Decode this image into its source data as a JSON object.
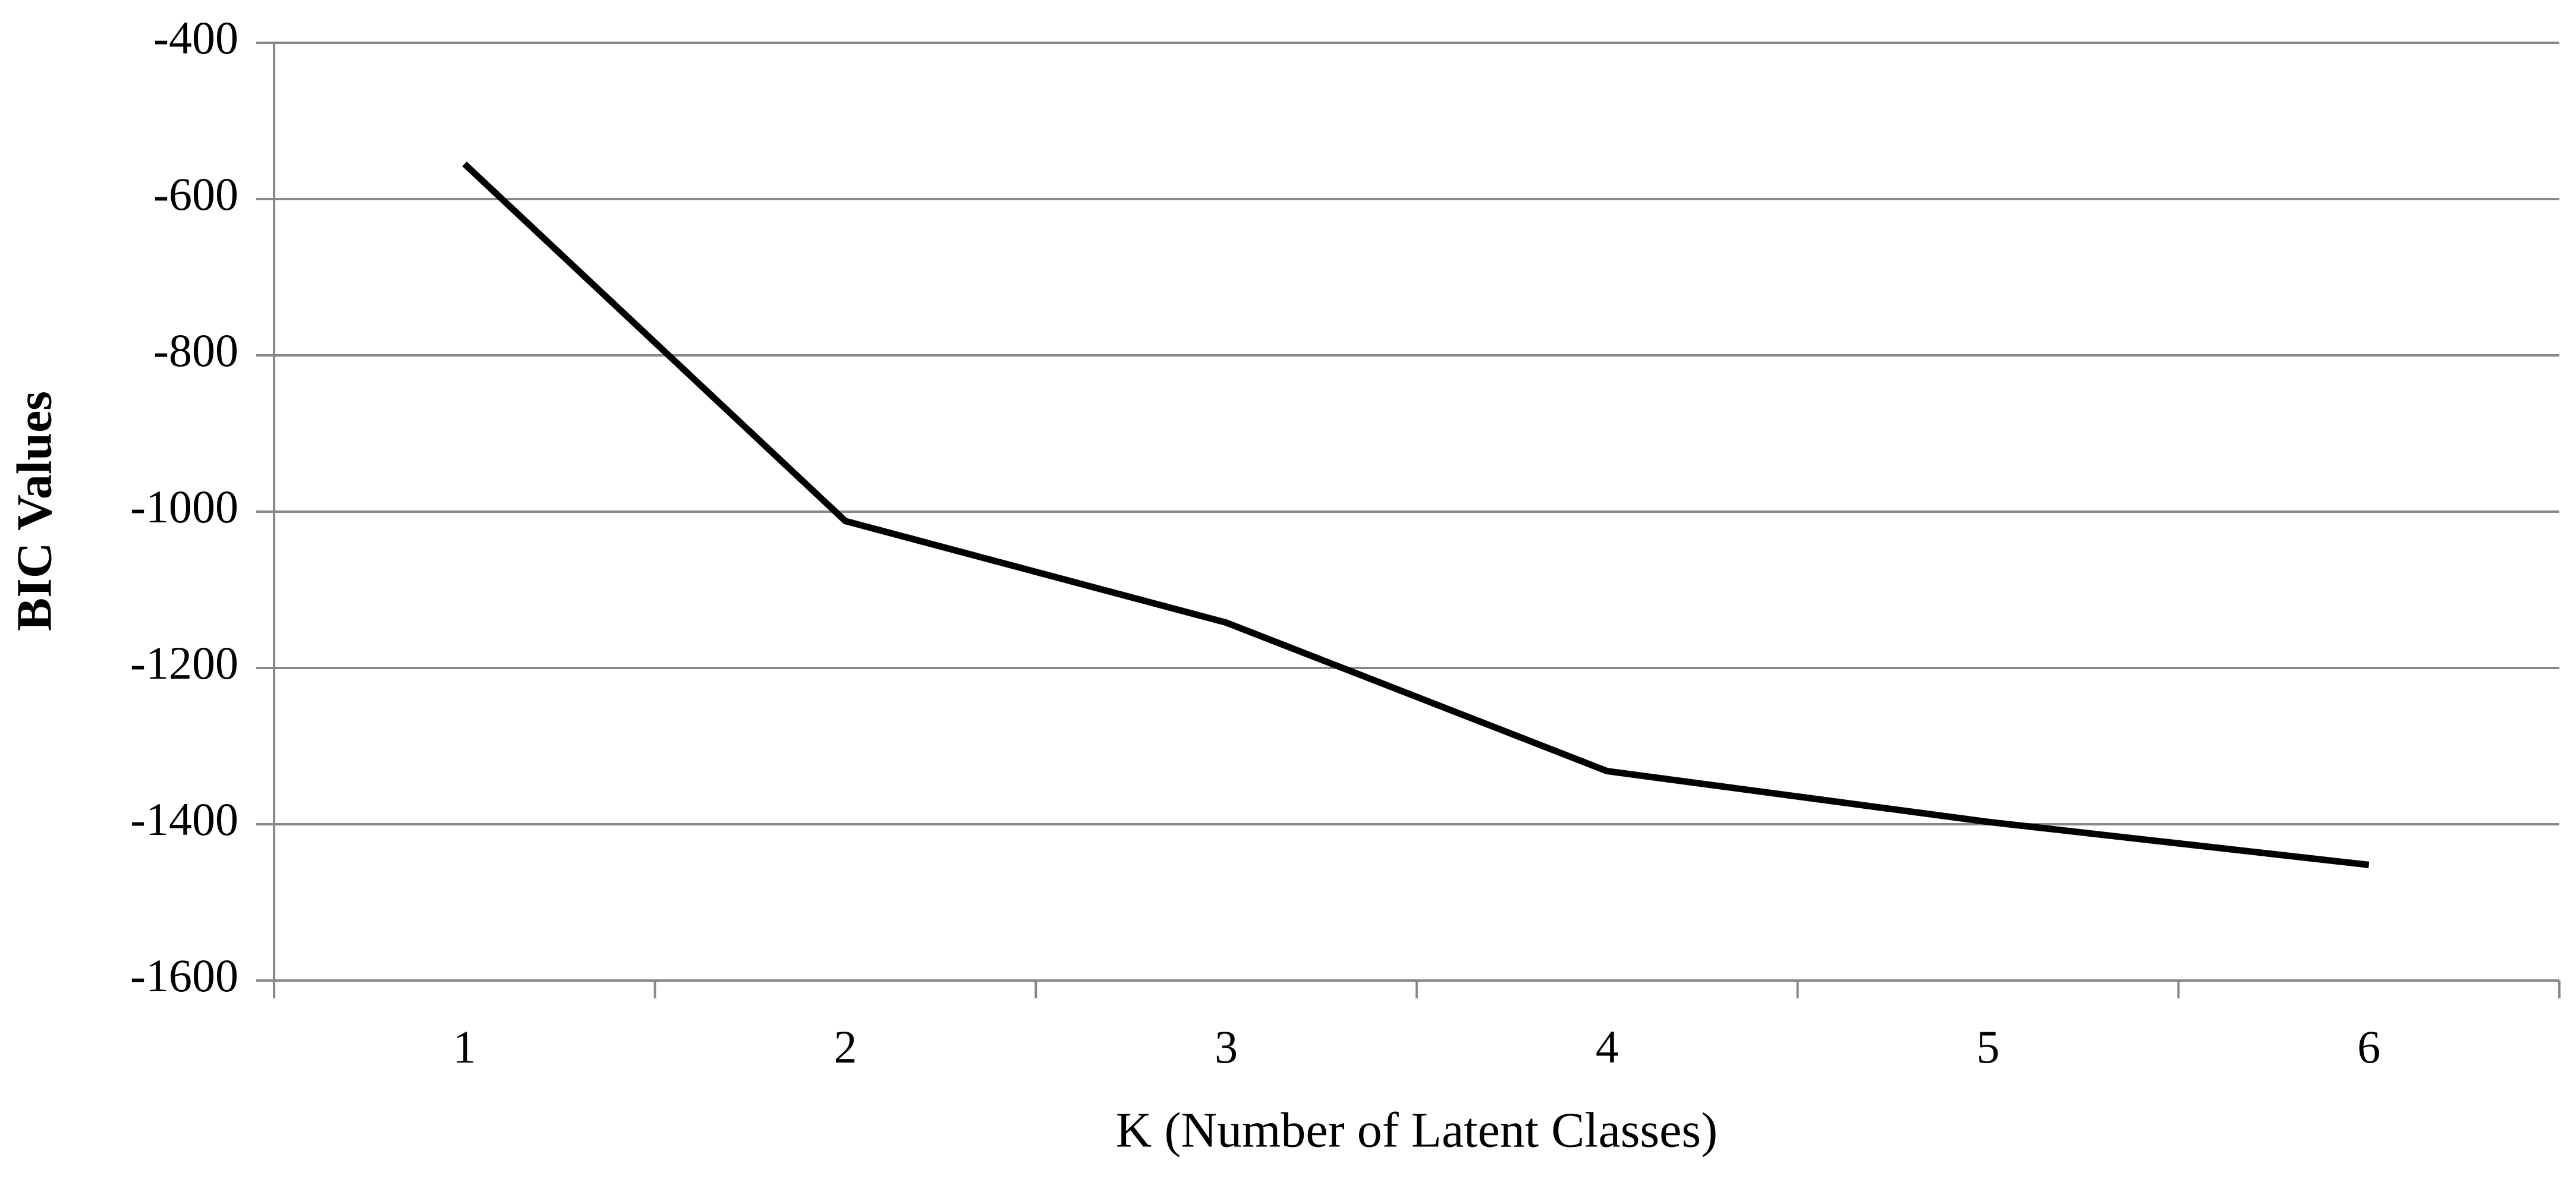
{
  "chart_data": {
    "type": "line",
    "x_label": "K (Number of Latent Classes)",
    "y_label": "BIC Values",
    "categories": [
      "1",
      "2",
      "3",
      "4",
      "5",
      "6"
    ],
    "values": [
      -555,
      -1012,
      -1142,
      -1332,
      -1397,
      -1452
    ],
    "color": "#000000",
    "ylim": [
      -1600,
      -400
    ],
    "yticks": [
      -1600,
      -1400,
      -1200,
      -1000,
      -800,
      -600,
      -400
    ],
    "grid": true
  }
}
